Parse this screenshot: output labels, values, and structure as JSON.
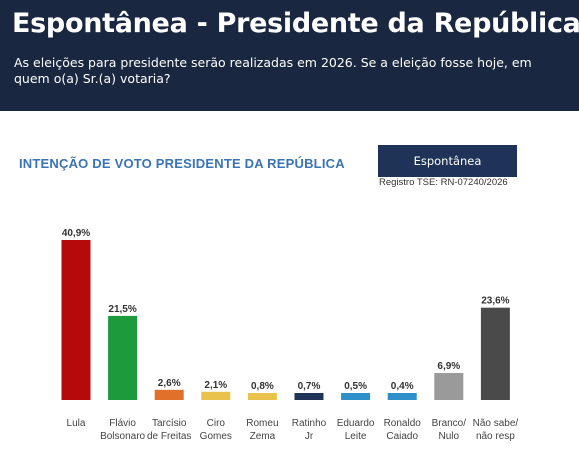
{
  "header": {
    "title": "Espontânea - Presidente da República",
    "question": "As eleições para presidente serão realizadas em 2026.  Se a eleição fosse hoje, em quem o(a) Sr.(a) votaria?"
  },
  "filter": {
    "label": "Espontânea"
  },
  "registry": "Registro TSE: RN-07240/2026",
  "colors": {
    "header_bg": "#1a2740",
    "title_blue": "#3a73b6",
    "button_bg": "#1f3358"
  },
  "chart_data": {
    "type": "bar",
    "title": "INTENÇÃO DE VOTO PRESIDENTE DA REPÚBLICA",
    "categories": [
      [
        "Lula"
      ],
      [
        "Flávio",
        "Bolsonaro"
      ],
      [
        "Tarcísio",
        "de Freitas"
      ],
      [
        "Ciro",
        "Gomes"
      ],
      [
        "Romeu",
        "Zema"
      ],
      [
        "Ratinho",
        "Jr"
      ],
      [
        "Eduardo",
        "Leite"
      ],
      [
        "Ronaldo",
        "Caiado"
      ],
      [
        "Branco/",
        "Nulo"
      ],
      [
        "Não sabe/",
        "não resp"
      ]
    ],
    "values": [
      40.9,
      21.5,
      2.6,
      2.1,
      0.8,
      0.7,
      0.5,
      0.4,
      6.9,
      23.6
    ],
    "value_labels": [
      "40,9%",
      "21,5%",
      "2,6%",
      "2,1%",
      "0,8%",
      "0,7%",
      "0,5%",
      "0,4%",
      "6,9%",
      "23,6%"
    ],
    "bar_colors": [
      "#b40a0a",
      "#1c9a3c",
      "#e0702a",
      "#e8c24a",
      "#e8c24a",
      "#1f3358",
      "#2e8fc9",
      "#2e8fc9",
      "#9a9a9a",
      "#4a4a4a"
    ],
    "ylim": [
      0,
      40.9
    ],
    "grid": false,
    "legend": "none"
  }
}
